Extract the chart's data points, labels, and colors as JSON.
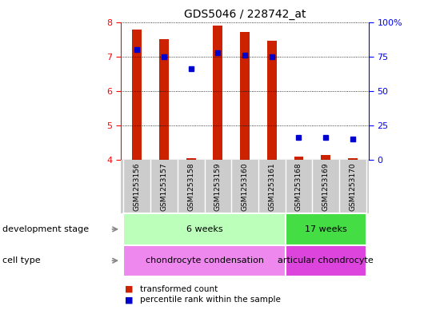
{
  "title": "GDS5046 / 228742_at",
  "samples": [
    "GSM1253156",
    "GSM1253157",
    "GSM1253158",
    "GSM1253159",
    "GSM1253160",
    "GSM1253161",
    "GSM1253168",
    "GSM1253169",
    "GSM1253170"
  ],
  "transformed_count": [
    7.78,
    7.5,
    4.05,
    7.9,
    7.7,
    7.45,
    4.1,
    4.15,
    4.05
  ],
  "percentile_rank": [
    7.2,
    7.0,
    6.65,
    7.1,
    7.05,
    7.0,
    4.65,
    4.65,
    4.6
  ],
  "ylim": [
    4,
    8
  ],
  "y_ticks_left": [
    4,
    5,
    6,
    7,
    8
  ],
  "y_ticks_right": [
    0,
    25,
    50,
    75,
    100
  ],
  "bar_color": "#cc2200",
  "dot_color": "#0000cc",
  "bar_width": 0.35,
  "dev_stage_groups": [
    {
      "label": "6 weeks",
      "start": 0,
      "end": 5,
      "color": "#bbffbb"
    },
    {
      "label": "17 weeks",
      "start": 6,
      "end": 8,
      "color": "#44dd44"
    }
  ],
  "cell_type_groups": [
    {
      "label": "chondrocyte condensation",
      "start": 0,
      "end": 5,
      "color": "#ee88ee"
    },
    {
      "label": "articular chondrocyte",
      "start": 6,
      "end": 8,
      "color": "#dd44dd"
    }
  ],
  "dev_stage_label": "development stage",
  "cell_type_label": "cell type",
  "legend_items": [
    {
      "label": "transformed count",
      "color": "#cc2200"
    },
    {
      "label": "percentile rank within the sample",
      "color": "#0000cc"
    }
  ],
  "grid_color": "black",
  "bg_color": "#ffffff",
  "xticklabel_bg": "#cccccc"
}
